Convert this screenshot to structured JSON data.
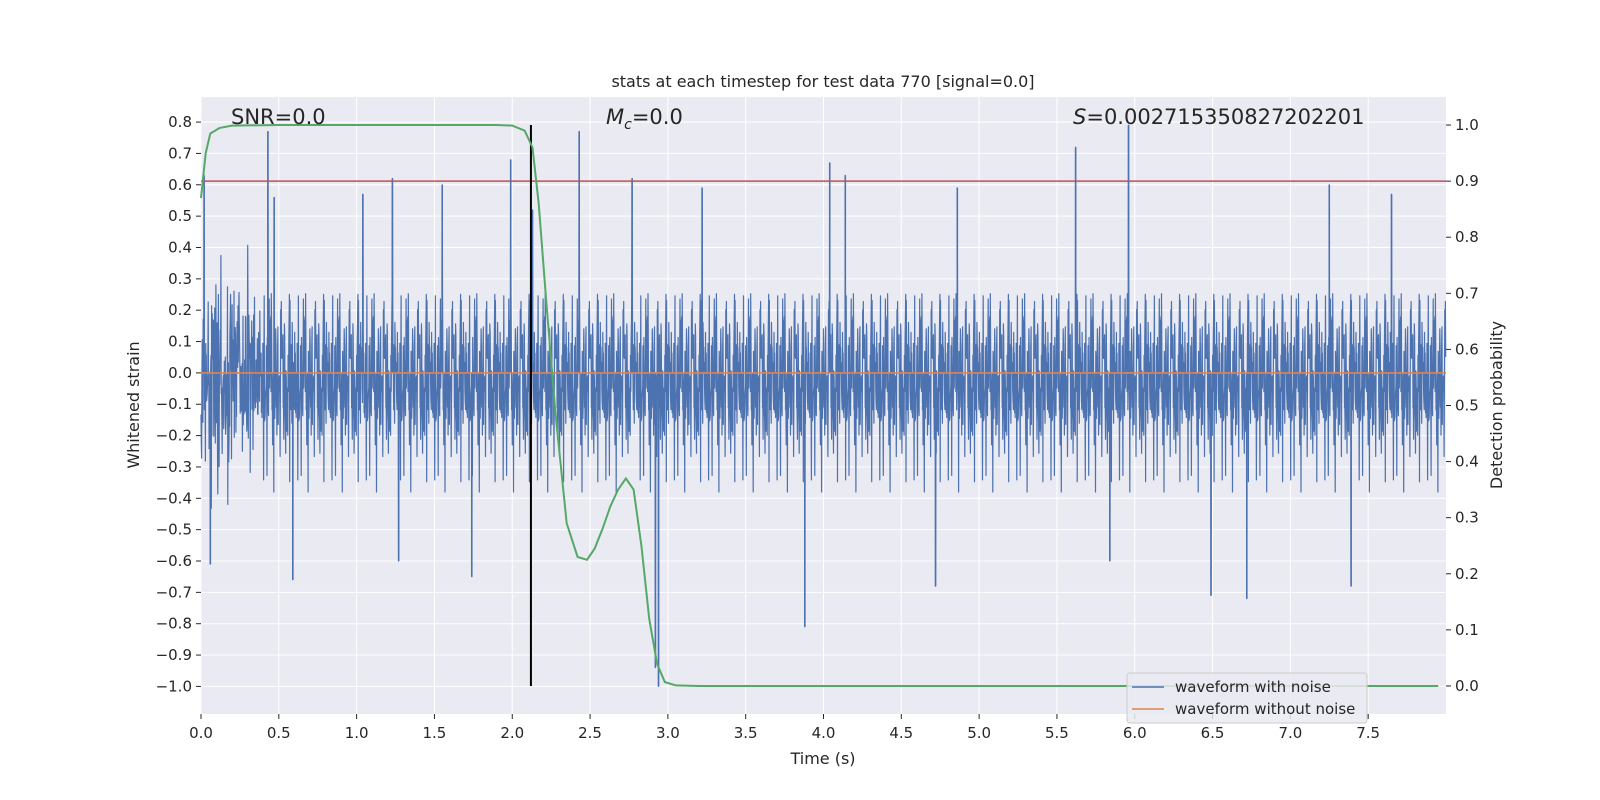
{
  "chart_data": {
    "type": "line",
    "title": "stats at each timestep for test data 770 [signal=0.0]",
    "xlabel": "Time (s)",
    "ylabel": "Whitened strain",
    "y2label": "Detection probability",
    "xlim": [
      0.0,
      8.0
    ],
    "ylim": [
      -1.088,
      0.88
    ],
    "y2lim": [
      -0.05,
      1.05
    ],
    "xticks": [
      "0.0",
      "0.5",
      "1.0",
      "1.5",
      "2.0",
      "2.5",
      "3.0",
      "3.5",
      "4.0",
      "4.5",
      "5.0",
      "5.5",
      "6.0",
      "6.5",
      "7.0",
      "7.5"
    ],
    "yticks": [
      "0.8",
      "0.7",
      "0.6",
      "0.5",
      "0.4",
      "0.3",
      "0.2",
      "0.1",
      "0.0",
      "−0.1",
      "−0.2",
      "−0.3",
      "−0.4",
      "−0.5",
      "−0.6",
      "−0.7",
      "−0.8",
      "−0.9",
      "−1.0"
    ],
    "y2ticks": [
      "1.0",
      "0.9",
      "0.8",
      "0.7",
      "0.6",
      "0.5",
      "0.4",
      "0.3",
      "0.2",
      "0.1",
      "0.0"
    ],
    "annotations": {
      "snr": "SNR=0.0",
      "mc_symbol": "M",
      "mc_sub": "c",
      "mc_value": "=0.0",
      "s_symbol": "S",
      "s_value": "=0.002715350827202201"
    },
    "threshold": {
      "value": 0.9,
      "axis": "right",
      "color": "#c44e52"
    },
    "marker_time": {
      "x": 2.12,
      "color": "#000000"
    },
    "series": [
      {
        "name": "waveform with noise",
        "color": "#4c72b0",
        "axis": "left",
        "description": "dense whitened noise, mostly within ±0.4 with spikes up to about 0.77 and down to about −1.0",
        "spikes": [
          {
            "x": 0.02,
            "y": 0.63
          },
          {
            "x": 0.43,
            "y": 0.77
          },
          {
            "x": 0.47,
            "y": 0.56
          },
          {
            "x": 1.04,
            "y": 0.57
          },
          {
            "x": 1.23,
            "y": 0.62
          },
          {
            "x": 1.55,
            "y": 0.6
          },
          {
            "x": 1.99,
            "y": 0.68
          },
          {
            "x": 2.13,
            "y": 0.52
          },
          {
            "x": 2.43,
            "y": 0.77
          },
          {
            "x": 2.77,
            "y": 0.62
          },
          {
            "x": 3.22,
            "y": 0.59
          },
          {
            "x": 4.04,
            "y": 0.67
          },
          {
            "x": 4.14,
            "y": 0.63
          },
          {
            "x": 4.86,
            "y": 0.59
          },
          {
            "x": 5.62,
            "y": 0.72
          },
          {
            "x": 5.96,
            "y": 0.79
          },
          {
            "x": 7.25,
            "y": 0.6
          },
          {
            "x": 7.65,
            "y": 0.57
          },
          {
            "x": 0.06,
            "y": -0.61
          },
          {
            "x": 0.59,
            "y": -0.66
          },
          {
            "x": 1.27,
            "y": -0.6
          },
          {
            "x": 1.74,
            "y": -0.65
          },
          {
            "x": 2.92,
            "y": -0.94
          },
          {
            "x": 2.94,
            "y": -1.0
          },
          {
            "x": 3.88,
            "y": -0.81
          },
          {
            "x": 4.72,
            "y": -0.68
          },
          {
            "x": 5.84,
            "y": -0.6
          },
          {
            "x": 6.49,
            "y": -0.71
          },
          {
            "x": 6.72,
            "y": -0.72
          },
          {
            "x": 7.39,
            "y": -0.68
          }
        ]
      },
      {
        "name": "waveform without noise",
        "color": "#dd8452",
        "axis": "left",
        "x": [
          0.0,
          8.0
        ],
        "y": [
          0.0,
          0.0
        ]
      },
      {
        "name": "detection probability",
        "color": "#55a868",
        "axis": "right",
        "x": [
          0.0,
          0.03,
          0.06,
          0.12,
          0.2,
          0.5,
          1.0,
          1.5,
          1.9,
          2.0,
          2.08,
          2.13,
          2.17,
          2.22,
          2.28,
          2.35,
          2.42,
          2.48,
          2.53,
          2.58,
          2.63,
          2.68,
          2.73,
          2.78,
          2.83,
          2.88,
          2.93,
          2.98,
          3.05,
          3.2,
          4.0,
          5.0,
          6.0,
          7.0,
          7.95
        ],
        "y": [
          0.87,
          0.95,
          0.985,
          0.995,
          0.999,
          1.0,
          1.0,
          1.0,
          1.0,
          0.999,
          0.99,
          0.96,
          0.86,
          0.68,
          0.48,
          0.29,
          0.23,
          0.225,
          0.245,
          0.28,
          0.32,
          0.35,
          0.37,
          0.35,
          0.25,
          0.12,
          0.04,
          0.007,
          0.001,
          0.0,
          0.0,
          0.0,
          0.0,
          0.0,
          0.0
        ]
      }
    ],
    "legend": {
      "location": "lower-right",
      "entries": [
        {
          "label": "waveform with noise",
          "color": "#4c72b0"
        },
        {
          "label": "waveform without noise",
          "color": "#dd8452"
        }
      ]
    },
    "style": {
      "plot_bg": "#eaeaf2",
      "grid_color": "#ffffff",
      "grid": true
    }
  }
}
